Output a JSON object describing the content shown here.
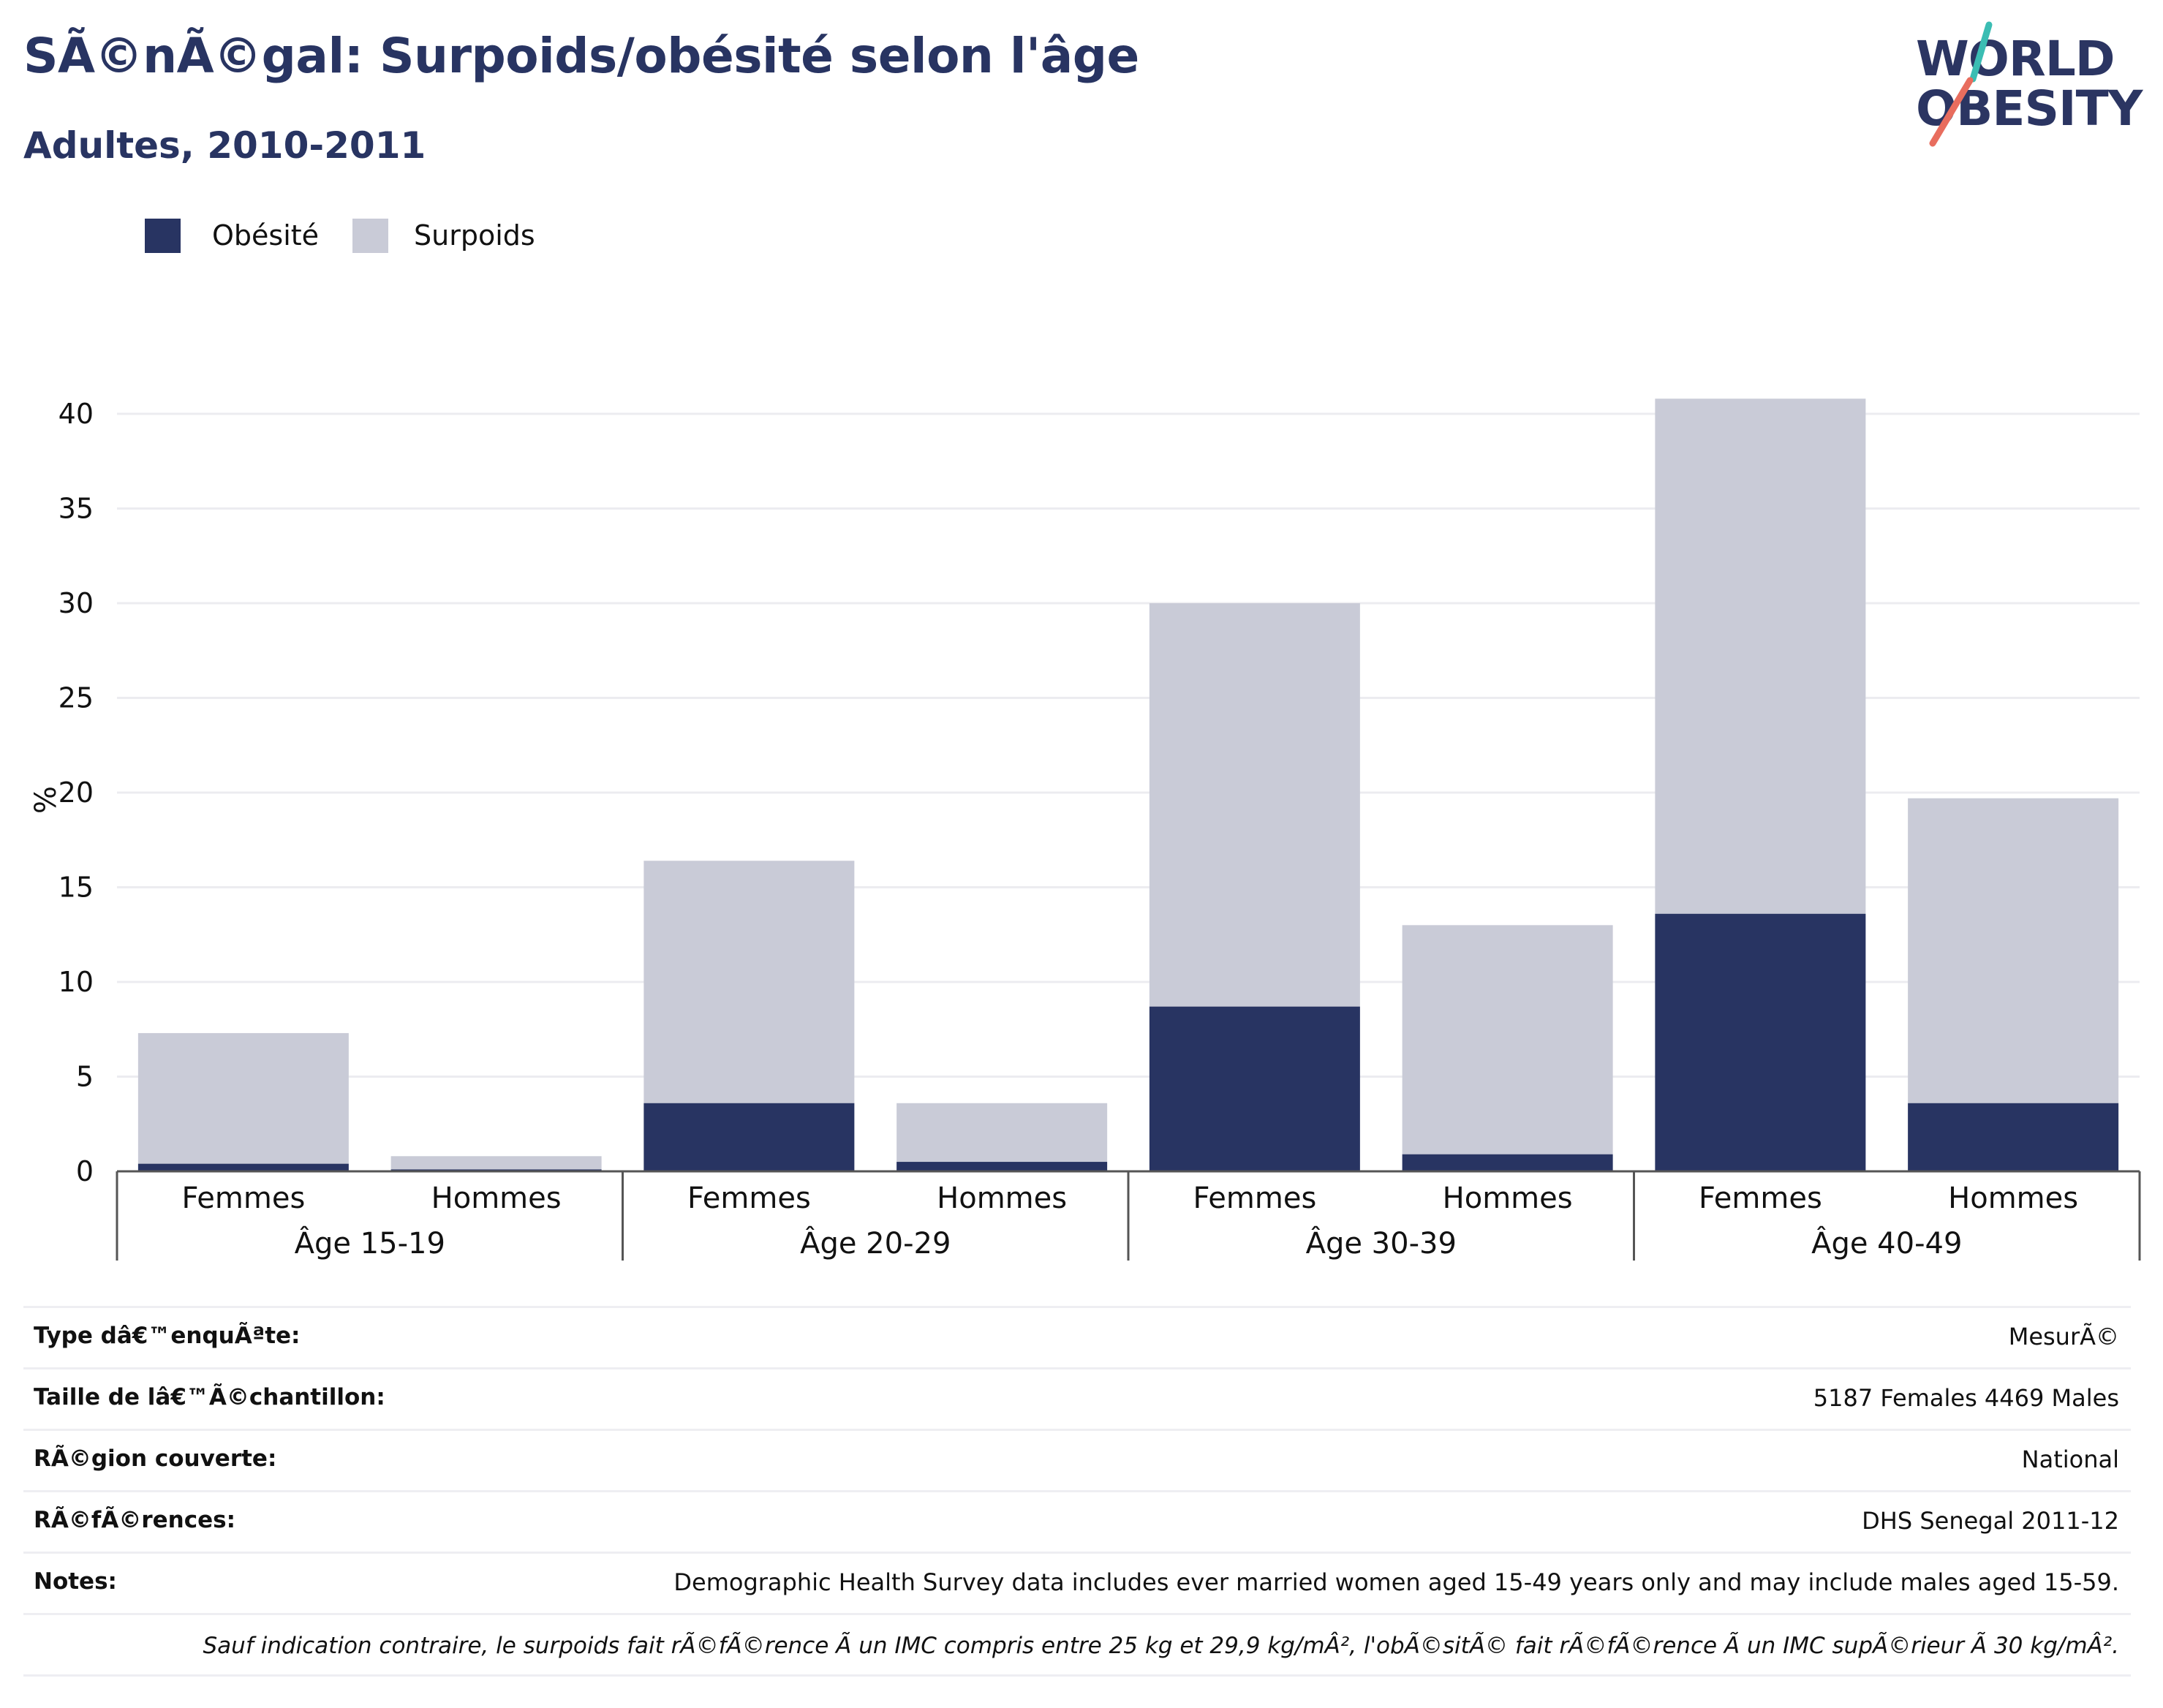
{
  "header": {
    "title": "SÃ©nÃ©gal: Surpoids/obésité selon l'âge",
    "subtitle": "Adultes, 2010-2011"
  },
  "logo": {
    "line1": "WORLD",
    "line2": "OBESITY"
  },
  "colors": {
    "obesity": "#283462",
    "overweight": "#c9cbd7",
    "grid": "#ececf0",
    "axis": "#555555",
    "logo_teal": "#3bbdb3",
    "logo_coral": "#e86d5e"
  },
  "legend": [
    {
      "label": "Obésité",
      "color": "#283462"
    },
    {
      "label": "Surpoids",
      "color": "#c9cbd7"
    }
  ],
  "chart_data": {
    "type": "bar",
    "stacked": true,
    "ylabel": "%",
    "ylim": [
      0,
      42
    ],
    "yticks": [
      0,
      5,
      10,
      15,
      20,
      25,
      30,
      35,
      40
    ],
    "grid": true,
    "legend_position": "top-left",
    "groups": [
      "Âge 15-19",
      "Âge 20-29",
      "Âge 30-39",
      "Âge 40-49"
    ],
    "sexes": [
      "Femmes",
      "Hommes"
    ],
    "categories": [
      "Femmes",
      "Hommes",
      "Femmes",
      "Hommes",
      "Femmes",
      "Hommes",
      "Femmes",
      "Hommes"
    ],
    "series": [
      {
        "name": "Obésité",
        "values": [
          0.4,
          0.1,
          3.6,
          0.5,
          8.7,
          0.9,
          13.6,
          3.6
        ]
      },
      {
        "name": "Surpoids",
        "values": [
          6.9,
          0.7,
          12.8,
          3.1,
          21.3,
          12.1,
          27.2,
          16.1
        ]
      }
    ]
  },
  "info": [
    {
      "label": "Type dâ€™enquÃªte:",
      "value": "MesurÃ©"
    },
    {
      "label": "Taille de lâ€™Ã©chantillon:",
      "value": "5187 Females 4469 Males"
    },
    {
      "label": "RÃ©gion couverte:",
      "value": "National"
    },
    {
      "label": "RÃ©fÃ©rences:",
      "value": "DHS Senegal 2011-12"
    },
    {
      "label": "Notes:",
      "value": "Demographic Health Survey data includes ever married women aged 15-49 years only and may include males aged 15-59."
    }
  ],
  "footnote": "Sauf indication contraire, le surpoids fait rÃ©fÃ©rence Ã  un IMC compris entre 25 kg et 29,9 kg/mÂ², l'obÃ©sitÃ© fait rÃ©fÃ©rence Ã  un IMC supÃ©rieur Ã  30 kg/mÂ²."
}
